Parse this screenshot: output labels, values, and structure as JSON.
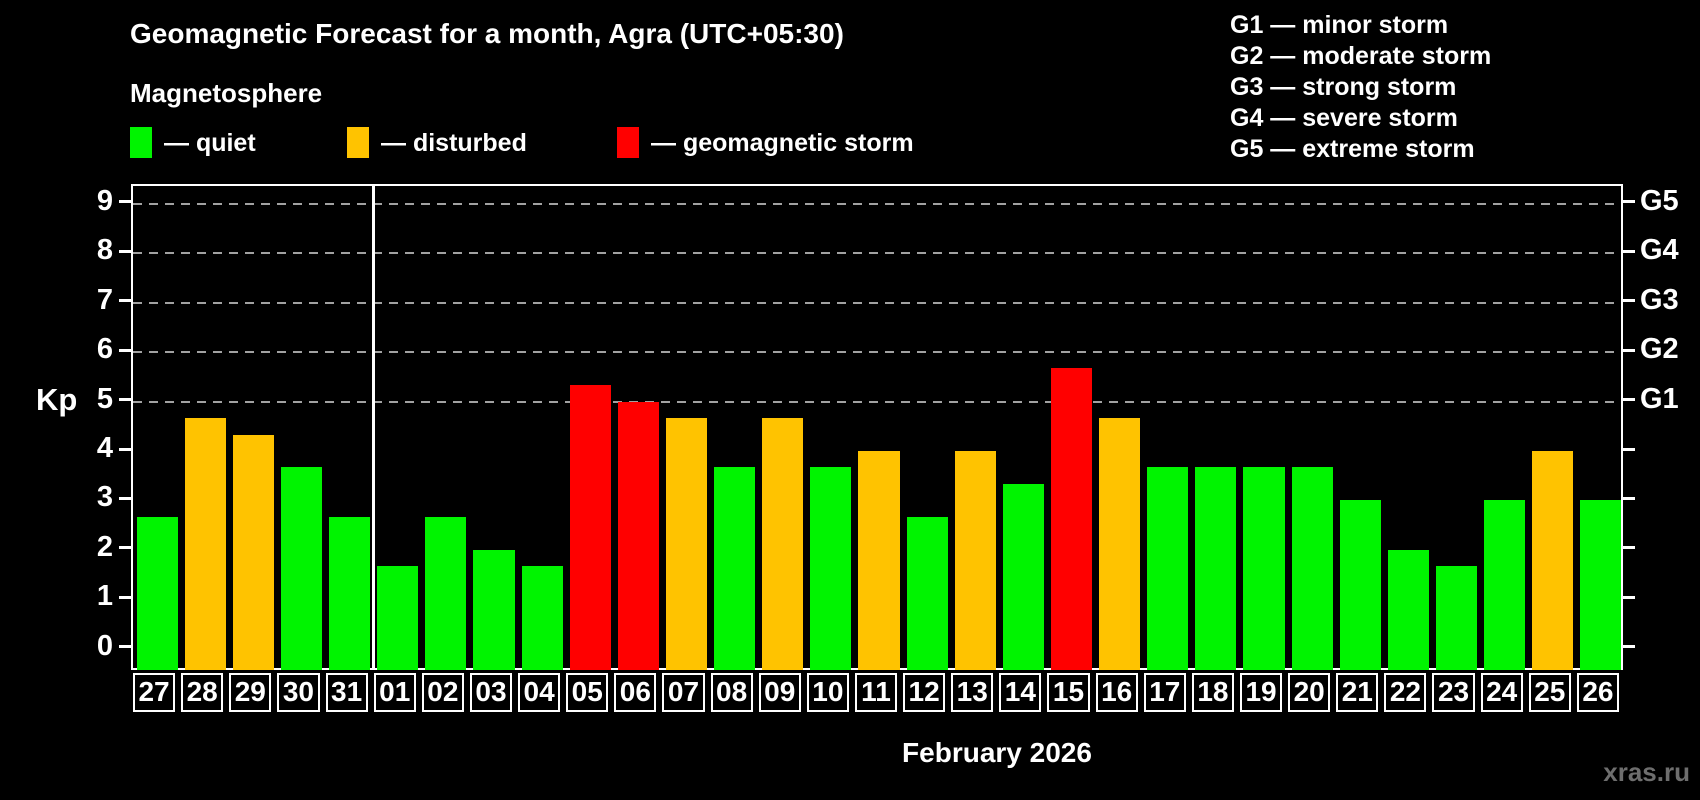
{
  "header": {
    "title": "Geomagnetic Forecast for a month, Agra (UTC+05:30)",
    "subtitle": "Magnetosphere"
  },
  "legend": {
    "items": [
      {
        "name": "quiet",
        "label": "— quiet",
        "color": "#00f400"
      },
      {
        "name": "disturbed",
        "label": "— disturbed",
        "color": "#ffc300"
      },
      {
        "name": "storm",
        "label": "— geomagnetic storm",
        "color": "#ff0000"
      }
    ]
  },
  "storm_scale_legend": {
    "items": [
      "G1 — minor storm",
      "G2 — moderate storm",
      "G3 — strong storm",
      "G4 — severe storm",
      "G5 — extreme storm"
    ]
  },
  "chart_data": {
    "type": "bar",
    "title": "Geomagnetic Forecast for a month, Agra (UTC+05:30)",
    "ylabel": "Kp",
    "ylim": [
      0,
      9
    ],
    "grid": "dashed horizontal at Kp 5-9",
    "categories": [
      "27",
      "28",
      "29",
      "30",
      "31",
      "01",
      "02",
      "03",
      "04",
      "05",
      "06",
      "07",
      "08",
      "09",
      "10",
      "11",
      "12",
      "13",
      "14",
      "15",
      "16",
      "17",
      "18",
      "19",
      "20",
      "21",
      "22",
      "23",
      "24",
      "25",
      "26"
    ],
    "values": [
      2.67,
      4.67,
      4.33,
      3.67,
      2.67,
      1.67,
      2.67,
      2.0,
      1.67,
      5.33,
      5.0,
      4.67,
      3.67,
      4.67,
      3.67,
      4.0,
      2.67,
      4.0,
      3.33,
      5.67,
      4.67,
      3.67,
      3.67,
      3.67,
      3.67,
      3.0,
      2.0,
      1.67,
      3.0,
      4.0,
      3.0
    ],
    "statuses": [
      "quiet",
      "disturbed",
      "disturbed",
      "quiet",
      "quiet",
      "quiet",
      "quiet",
      "quiet",
      "quiet",
      "storm",
      "storm",
      "disturbed",
      "quiet",
      "disturbed",
      "quiet",
      "disturbed",
      "quiet",
      "disturbed",
      "quiet",
      "storm",
      "disturbed",
      "quiet",
      "quiet",
      "quiet",
      "quiet",
      "quiet",
      "quiet",
      "quiet",
      "quiet",
      "disturbed",
      "quiet"
    ],
    "status_colors": {
      "quiet": "#00f400",
      "disturbed": "#ffc300",
      "storm": "#ff0000"
    },
    "yticks": [
      0,
      1,
      2,
      3,
      4,
      5,
      6,
      7,
      8,
      9
    ],
    "gridlines_at": [
      5,
      6,
      7,
      8,
      9
    ],
    "right_axis_labels": [
      {
        "kp": 9,
        "label": "G5"
      },
      {
        "kp": 8,
        "label": "G4"
      },
      {
        "kp": 7,
        "label": "G3"
      },
      {
        "kp": 6,
        "label": "G2"
      },
      {
        "kp": 5,
        "label": "G1"
      }
    ],
    "month_separator_after_index": 4,
    "xcaption": "February 2026"
  },
  "watermark": "xras.ru"
}
